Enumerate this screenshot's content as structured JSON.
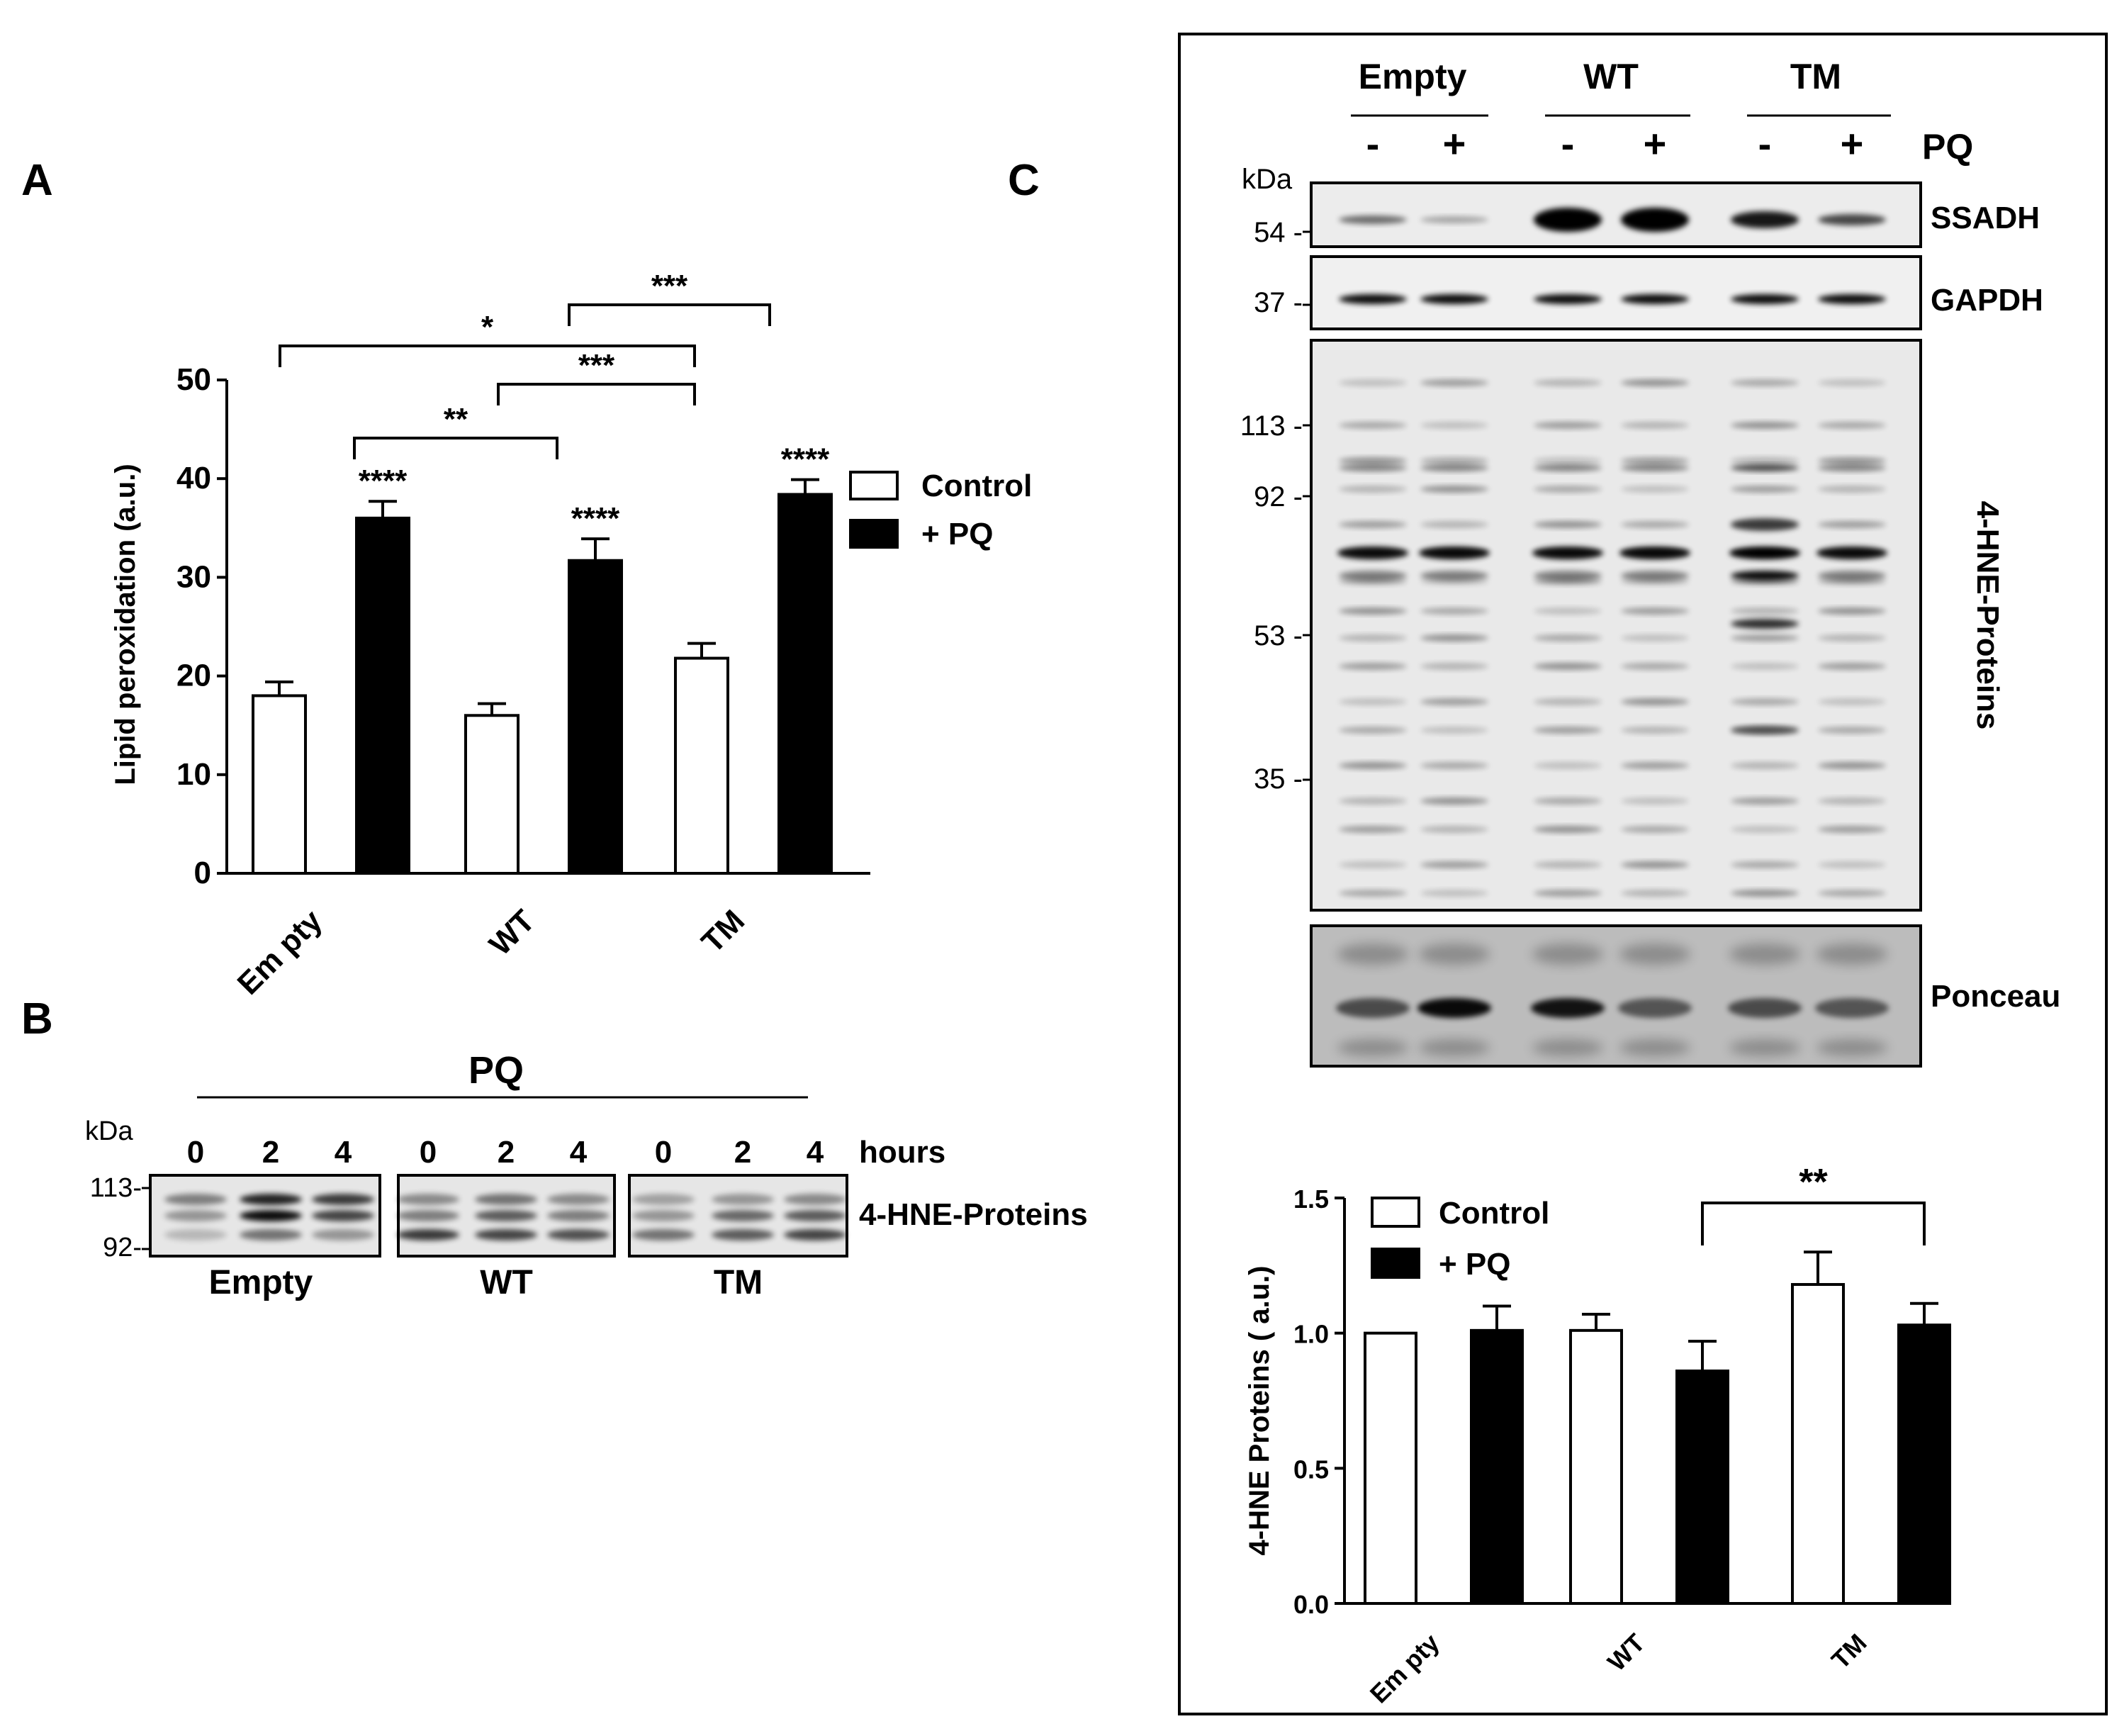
{
  "panel_labels": {
    "a": "A",
    "b": "B",
    "c": "C"
  },
  "chart_data": [
    {
      "type": "bar",
      "panel": "A",
      "categories": [
        "Em pty",
        "WT",
        "TM"
      ],
      "series": [
        {
          "name": "Control",
          "values": [
            18.0,
            16.0,
            21.8
          ],
          "errors": [
            1.4,
            1.2,
            1.5
          ],
          "color": "#ffffff"
        },
        {
          "name": "+ PQ",
          "values": [
            36.0,
            31.7,
            38.4
          ],
          "errors": [
            1.7,
            2.2,
            1.5
          ],
          "color": "#000000"
        }
      ],
      "ylabel": "Lipid peroxidation  (a.u.)",
      "ylim": [
        0,
        50
      ],
      "yticks": [
        "0",
        "10",
        "20",
        "30",
        "40",
        "50"
      ],
      "annotations": [
        "****",
        "****",
        "****"
      ],
      "brackets": [
        {
          "text": "*",
          "from": "Em pty + PQ",
          "to": "TM Control"
        },
        {
          "text": "***",
          "from": "WT + PQ",
          "to": "TM + PQ"
        },
        {
          "text": "***",
          "from": "WT Control",
          "to": "TM Control"
        },
        {
          "text": "**",
          "from": "Em pty + PQ",
          "to": "WT + PQ"
        }
      ],
      "legend": "right"
    },
    {
      "type": "bar",
      "panel": "C",
      "categories": [
        "Em pty",
        "WT",
        "TM"
      ],
      "series": [
        {
          "name": "Control",
          "values": [
            1.0,
            1.01,
            1.18
          ],
          "errors": [
            0.0,
            0.06,
            0.12
          ],
          "color": "#ffffff"
        },
        {
          "name": "+ PQ",
          "values": [
            1.01,
            0.86,
            1.03
          ],
          "errors": [
            0.09,
            0.11,
            0.08
          ],
          "color": "#000000"
        }
      ],
      "ylabel": "4-HNE Proteins ( a.u.)",
      "ylim": [
        0,
        1.5
      ],
      "yticks": [
        "0.0",
        "0.5",
        "1.0",
        "1.5"
      ],
      "brackets": [
        {
          "text": "**",
          "from": "WT + PQ",
          "to": "TM + PQ"
        }
      ],
      "legend": "top-left"
    }
  ],
  "blot_b": {
    "title": "PQ",
    "kda": "kDa",
    "markers": [
      "113-",
      "92-"
    ],
    "hours": [
      "0",
      "2",
      "4"
    ],
    "hours_label": "hours",
    "groups": [
      "Empty",
      "WT",
      "TM"
    ],
    "band_label": "4-HNE-Proteins"
  },
  "blot_c": {
    "groups": [
      "Empty",
      "WT",
      "TM"
    ],
    "signs": [
      "-",
      "+",
      "-",
      "+",
      "-",
      "+"
    ],
    "treatment": "PQ",
    "kda": "kDa",
    "markers_top": [
      "54 -",
      "37 -"
    ],
    "markers_mid": [
      "113 -",
      "92 -",
      "53 -",
      "35 -"
    ],
    "labels": [
      "SSADH",
      "GAPDH",
      "4-HNE-Proteins",
      "Ponceau"
    ]
  }
}
